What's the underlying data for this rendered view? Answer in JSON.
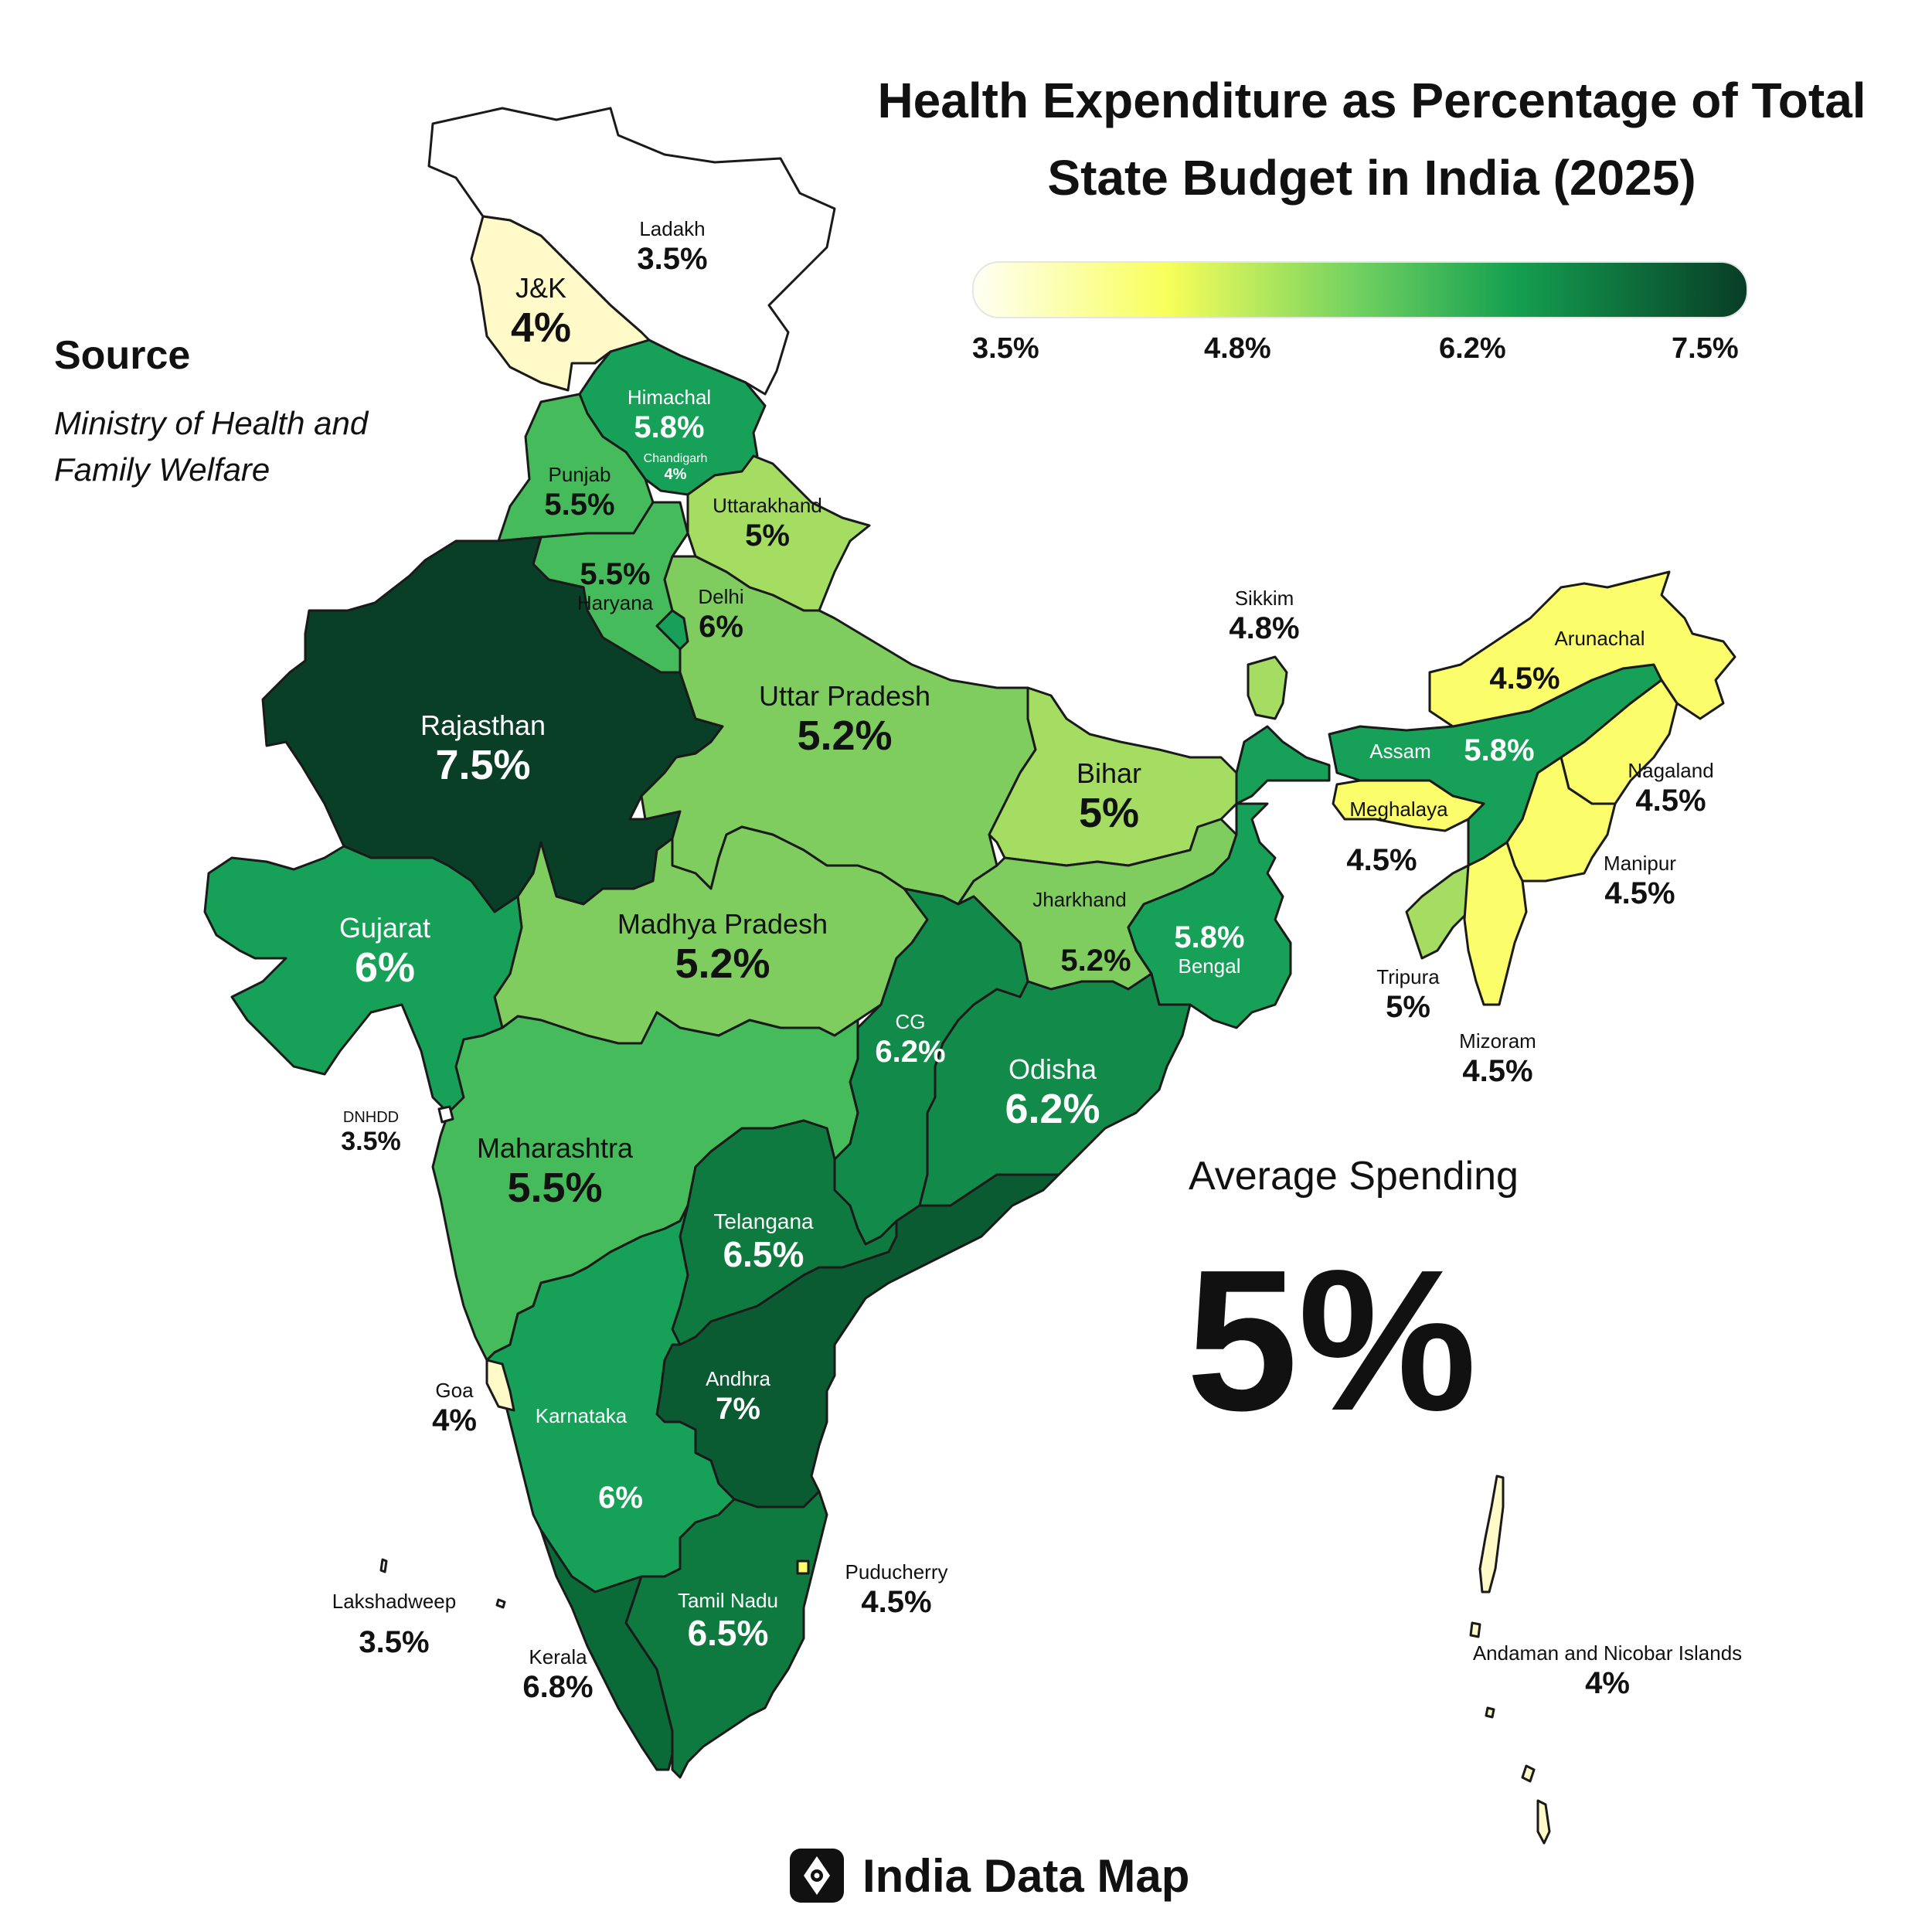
{
  "title_line1": "Health Expenditure as Percentage of Total",
  "title_line2": "State Budget in India (2025)",
  "legend": {
    "ticks": [
      "3.5%",
      "4.8%",
      "6.2%",
      "7.5%"
    ],
    "colors": [
      "#fffff4",
      "#f8ff5a",
      "#6fd060",
      "#14a050",
      "#083d26"
    ]
  },
  "source": {
    "heading": "Source",
    "text": "Ministry of Health and Family Welfare"
  },
  "average": {
    "label": "Average Spending",
    "value": "5%"
  },
  "brand": "India Data Map",
  "regions": {
    "ladakh": {
      "name": "Ladakh",
      "value": "3.5%",
      "color": "#ffffff"
    },
    "jk": {
      "name": "J&K",
      "value": "4%",
      "color": "#fffac8"
    },
    "himachal": {
      "name": "Himachal",
      "value": "5.8%",
      "color": "#16a058"
    },
    "chandigarh": {
      "name": "Chandigarh",
      "value": "4%",
      "color": "#16a058"
    },
    "punjab": {
      "name": "Punjab",
      "value": "5.5%",
      "color": "#45bb5b"
    },
    "haryana": {
      "name": "Haryana",
      "value": "5.5%",
      "color": "#45bb5b"
    },
    "uttarakhand": {
      "name": "Uttarakhand",
      "value": "5%",
      "color": "#a4dd62"
    },
    "delhi": {
      "name": "Delhi",
      "value": "6%",
      "color": "#16a058"
    },
    "rajasthan": {
      "name": "Rajasthan",
      "value": "7.5%",
      "color": "#093f27"
    },
    "up": {
      "name": "Uttar Pradesh",
      "value": "5.2%",
      "color": "#7fcd5e"
    },
    "mp": {
      "name": "Madhya Pradesh",
      "value": "5.2%",
      "color": "#7fcd5e"
    },
    "gujarat": {
      "name": "Gujarat",
      "value": "6%",
      "color": "#16a058"
    },
    "bihar": {
      "name": "Bihar",
      "value": "5%",
      "color": "#a4dd62"
    },
    "jharkhand": {
      "name": "Jharkhand",
      "value": "5.2%",
      "color": "#7fcd5e"
    },
    "bengal": {
      "name": "Bengal",
      "value": "5.8%",
      "color": "#16a058"
    },
    "sikkim": {
      "name": "Sikkim",
      "value": "4.8%",
      "color": "#a4dd62"
    },
    "arunachal": {
      "name": "Arunachal",
      "value": "4.5%",
      "color": "#fbfd6a"
    },
    "assam": {
      "name": "Assam",
      "value": "5.8%",
      "color": "#16a058"
    },
    "meghalaya": {
      "name": "Meghalaya",
      "value": "4.5%",
      "color": "#fbfd6a"
    },
    "nagaland": {
      "name": "Nagaland",
      "value": "4.5%",
      "color": "#fbfd6a"
    },
    "manipur": {
      "name": "Manipur",
      "value": "4.5%",
      "color": "#fbfd6a"
    },
    "tripura": {
      "name": "Tripura",
      "value": "5%",
      "color": "#a4dd62"
    },
    "mizoram": {
      "name": "Mizoram",
      "value": "4.5%",
      "color": "#fbfd6a"
    },
    "cg": {
      "name": "CG",
      "value": "6.2%",
      "color": "#128a4a"
    },
    "odisha": {
      "name": "Odisha",
      "value": "6.2%",
      "color": "#128a4a"
    },
    "dnhdd": {
      "name": "DNHDD",
      "value": "3.5%",
      "color": "#ffffff"
    },
    "maharashtra": {
      "name": "Maharashtra",
      "value": "5.5%",
      "color": "#45bb5b"
    },
    "telangana": {
      "name": "Telangana",
      "value": "6.5%",
      "color": "#0f7a40"
    },
    "goa": {
      "name": "Goa",
      "value": "4%",
      "color": "#fffac8"
    },
    "karnataka": {
      "name": "Karnataka",
      "value": "6%",
      "color": "#16a058"
    },
    "andhra": {
      "name": "Andhra",
      "value": "7%",
      "color": "#0a5a32"
    },
    "puducherry": {
      "name": "Puducherry",
      "value": "4.5%",
      "color": "#fbfd6a"
    },
    "tamilnadu": {
      "name": "Tamil Nadu",
      "value": "6.5%",
      "color": "#0f7a40"
    },
    "kerala": {
      "name": "Kerala",
      "value": "6.8%",
      "color": "#0b6b38"
    },
    "lakshadweep": {
      "name": "Lakshadweep",
      "value": "3.5%",
      "color": "#ffffff"
    },
    "andaman": {
      "name": "Andaman and Nicobar Islands",
      "value": "4%",
      "color": "#fffac8"
    }
  }
}
